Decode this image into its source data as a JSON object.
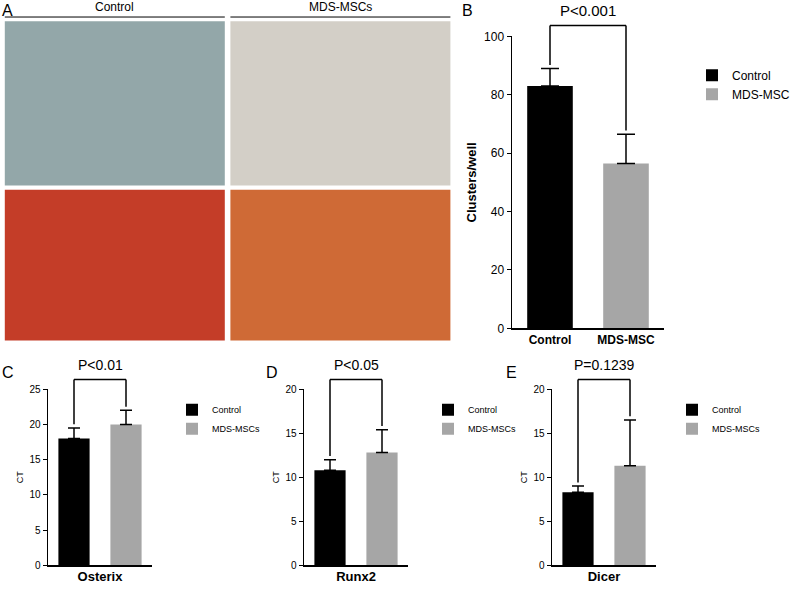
{
  "panel_a": {
    "label": "A",
    "columns": [
      "Control",
      "MDS-MSCs"
    ]
  },
  "chart_data": [
    {
      "type": "bar",
      "title": "B",
      "categories": [
        "Control",
        "MDS-MSC"
      ],
      "values": [
        83,
        56.5
      ],
      "errors": [
        6,
        10
      ],
      "colors": [
        "#000000",
        "#a6a6a6"
      ],
      "ylim": [
        0,
        100
      ],
      "yticks": [
        0,
        20,
        40,
        60,
        80,
        100
      ],
      "y_label": "Clusters/well",
      "annotations": [
        {
          "text": "P<0.001"
        }
      ],
      "grid": false,
      "legend": "right"
    },
    {
      "type": "bar",
      "title": "C",
      "categories": [
        "Control",
        "MDS-MSCs"
      ],
      "values": [
        18,
        20
      ],
      "errors": [
        1.5,
        2
      ],
      "colors": [
        "#000000",
        "#a6a6a6"
      ],
      "ylim": [
        0,
        25
      ],
      "yticks": [
        0,
        5,
        10,
        15,
        20,
        25
      ],
      "x_label": "Osterix",
      "y_label": "CT",
      "annotations": [
        {
          "text": "P<0.01"
        }
      ],
      "grid": false,
      "legend": "right",
      "tick_labels": "y"
    },
    {
      "type": "bar",
      "title": "D",
      "categories": [
        "Control",
        "MDS-MSCs"
      ],
      "values": [
        10.8,
        12.8
      ],
      "errors": [
        1.2,
        2.6
      ],
      "colors": [
        "#000000",
        "#a6a6a6"
      ],
      "ylim": [
        0,
        20
      ],
      "yticks": [
        0,
        5,
        10,
        15,
        20
      ],
      "x_label": "Runx2",
      "y_label": "CT",
      "annotations": [
        {
          "text": "P<0.05"
        }
      ],
      "grid": false,
      "legend": "right",
      "tick_labels": "y"
    },
    {
      "type": "bar",
      "title": "E",
      "categories": [
        "Control",
        "MDS-MSCs"
      ],
      "values": [
        8.3,
        11.3
      ],
      "errors": [
        0.7,
        5.2
      ],
      "colors": [
        "#000000",
        "#a6a6a6"
      ],
      "ylim": [
        0,
        20
      ],
      "yticks": [
        0,
        5,
        10,
        15,
        20
      ],
      "x_label": "Dicer",
      "y_label": "CT",
      "annotations": [
        {
          "text": "P=0.1239"
        }
      ],
      "grid": false,
      "legend": "right",
      "tick_labels": "y"
    }
  ]
}
